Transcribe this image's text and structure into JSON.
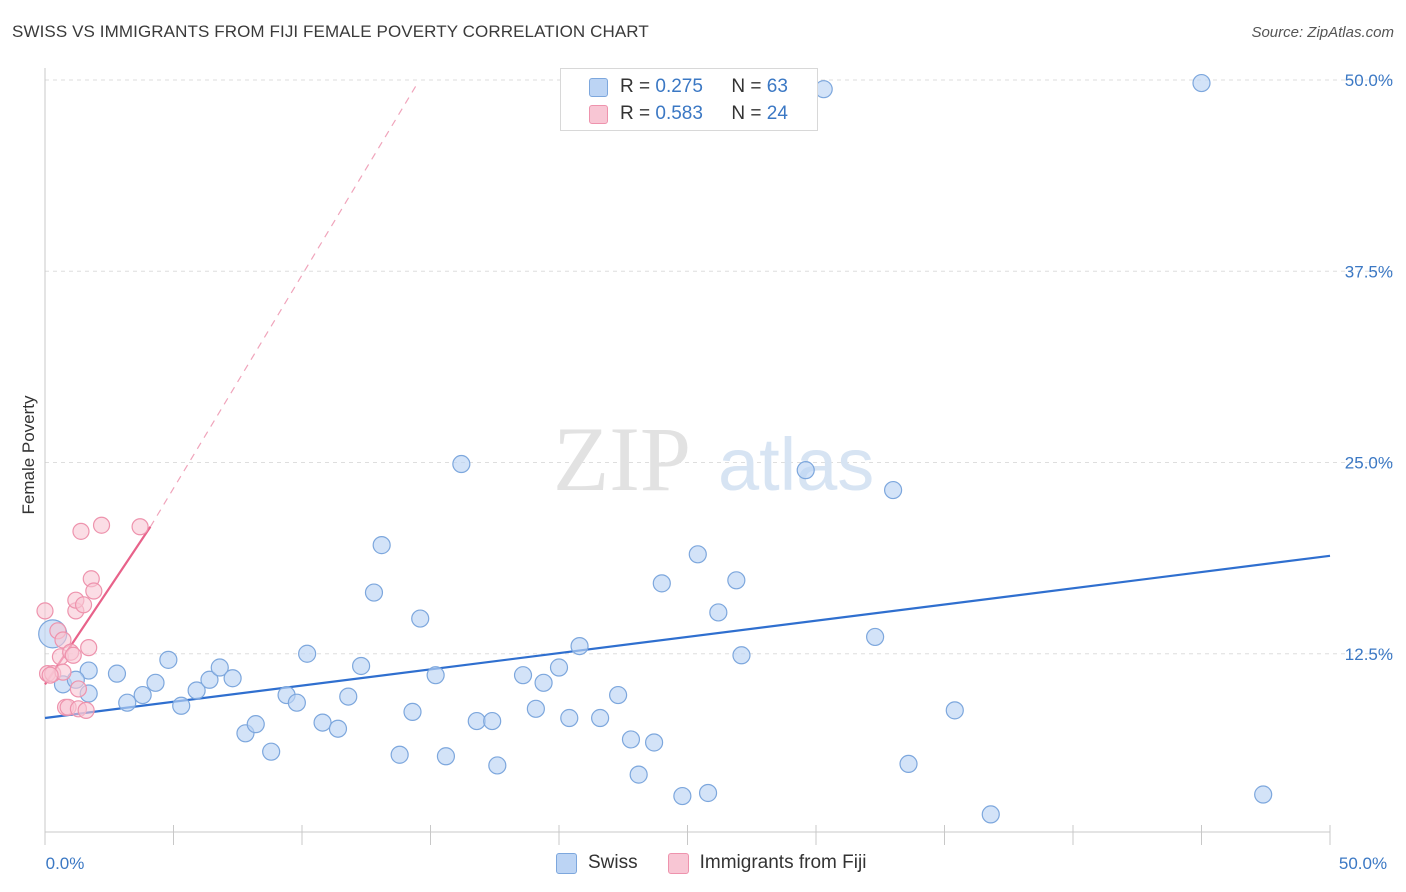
{
  "title": "SWISS VS IMMIGRANTS FROM FIJI FEMALE POVERTY CORRELATION CHART",
  "source": "Source: ZipAtlas.com",
  "watermark": {
    "zip": "ZIP",
    "atlas": "atlas"
  },
  "colors": {
    "swiss_fill": "#bcd4f4",
    "swiss_stroke": "#7da7dd",
    "swiss_line": "#2f6fcf",
    "fiji_fill": "#f8c6d4",
    "fiji_stroke": "#ee93ad",
    "fiji_line": "#e8628a",
    "grid": "#dedede",
    "axis_label": "#3b78c4"
  },
  "legend": {
    "rows": [
      {
        "r_label": "R =",
        "r_value": "0.275",
        "n_label": "N =",
        "n_value": "63"
      },
      {
        "r_label": "R =",
        "r_value": "0.583",
        "n_label": "N =",
        "n_value": "24"
      }
    ]
  },
  "bottom_legend": {
    "swiss": "Swiss",
    "fiji": "Immigrants from Fiji"
  },
  "chart_data": {
    "type": "scatter",
    "title": "SWISS VS IMMIGRANTS FROM FIJI FEMALE POVERTY CORRELATION CHART",
    "xlabel": "",
    "ylabel": "Female Poverty",
    "xlim": [
      0,
      50
    ],
    "ylim": [
      0,
      50
    ],
    "x_tick_labels": [
      "0.0%",
      "50.0%"
    ],
    "y_ticks": [
      12.5,
      25.0,
      37.5,
      50.0
    ],
    "y_tick_labels": [
      "12.5%",
      "25.0%",
      "37.5%",
      "50.0%"
    ],
    "grid": true,
    "series": [
      {
        "name": "Swiss",
        "R": 0.275,
        "N": 63,
        "trend": {
          "x": [
            0,
            50
          ],
          "y": [
            8.3,
            18.9
          ]
        },
        "points": [
          [
            0.3,
            13.8
          ],
          [
            0.7,
            10.5
          ],
          [
            1.7,
            11.4
          ],
          [
            1.2,
            10.8
          ],
          [
            1.7,
            9.9
          ],
          [
            2.8,
            11.2
          ],
          [
            3.2,
            9.3
          ],
          [
            3.8,
            9.8
          ],
          [
            4.3,
            10.6
          ],
          [
            4.8,
            12.1
          ],
          [
            5.3,
            9.1
          ],
          [
            5.9,
            10.1
          ],
          [
            6.4,
            10.8
          ],
          [
            6.8,
            11.6
          ],
          [
            7.3,
            10.9
          ],
          [
            7.8,
            7.3
          ],
          [
            8.2,
            7.9
          ],
          [
            8.8,
            6.1
          ],
          [
            9.4,
            9.8
          ],
          [
            9.8,
            9.3
          ],
          [
            10.2,
            12.5
          ],
          [
            10.8,
            8.0
          ],
          [
            11.4,
            7.6
          ],
          [
            11.8,
            9.7
          ],
          [
            12.3,
            11.7
          ],
          [
            12.8,
            16.5
          ],
          [
            13.1,
            19.6
          ],
          [
            13.8,
            5.9
          ],
          [
            14.3,
            8.7
          ],
          [
            14.6,
            14.8
          ],
          [
            15.2,
            11.1
          ],
          [
            15.6,
            5.8
          ],
          [
            16.2,
            24.9
          ],
          [
            16.8,
            8.1
          ],
          [
            17.4,
            8.1
          ],
          [
            17.6,
            5.2
          ],
          [
            18.6,
            11.1
          ],
          [
            19.1,
            8.9
          ],
          [
            19.4,
            10.6
          ],
          [
            20.0,
            11.6
          ],
          [
            20.4,
            8.3
          ],
          [
            20.8,
            13.0
          ],
          [
            21.6,
            8.3
          ],
          [
            22.3,
            9.8
          ],
          [
            22.8,
            6.9
          ],
          [
            23.1,
            4.6
          ],
          [
            23.7,
            6.7
          ],
          [
            24.0,
            17.1
          ],
          [
            24.8,
            3.2
          ],
          [
            25.4,
            19.0
          ],
          [
            25.8,
            3.4
          ],
          [
            26.2,
            15.2
          ],
          [
            26.9,
            17.3
          ],
          [
            27.1,
            12.4
          ],
          [
            29.6,
            24.5
          ],
          [
            32.3,
            13.6
          ],
          [
            33.0,
            23.2
          ],
          [
            33.6,
            5.3
          ],
          [
            35.4,
            8.8
          ],
          [
            36.8,
            2.0
          ],
          [
            30.3,
            49.4
          ],
          [
            45.0,
            49.8
          ],
          [
            47.4,
            3.3
          ]
        ]
      },
      {
        "name": "Immigrants from Fiji",
        "R": 0.583,
        "N": 24,
        "trend": {
          "x": [
            0,
            4.1
          ],
          "y": [
            10.5,
            20.8
          ]
        },
        "trend_extended": {
          "x": [
            4.1,
            14.5
          ],
          "y": [
            20.8,
            49.8
          ]
        },
        "points": [
          [
            0.0,
            15.3
          ],
          [
            0.1,
            11.2
          ],
          [
            0.3,
            11.2
          ],
          [
            0.5,
            14.0
          ],
          [
            0.6,
            12.3
          ],
          [
            0.7,
            13.4
          ],
          [
            0.7,
            11.3
          ],
          [
            0.8,
            9.0
          ],
          [
            0.9,
            9.0
          ],
          [
            1.0,
            12.6
          ],
          [
            1.1,
            12.4
          ],
          [
            1.2,
            15.3
          ],
          [
            1.2,
            16.0
          ],
          [
            1.3,
            10.2
          ],
          [
            1.3,
            8.9
          ],
          [
            1.4,
            20.5
          ],
          [
            1.5,
            15.7
          ],
          [
            1.6,
            8.8
          ],
          [
            1.7,
            12.9
          ],
          [
            1.8,
            17.4
          ],
          [
            1.9,
            16.6
          ],
          [
            2.2,
            20.9
          ],
          [
            3.7,
            20.8
          ],
          [
            0.2,
            11.1
          ]
        ]
      }
    ]
  }
}
